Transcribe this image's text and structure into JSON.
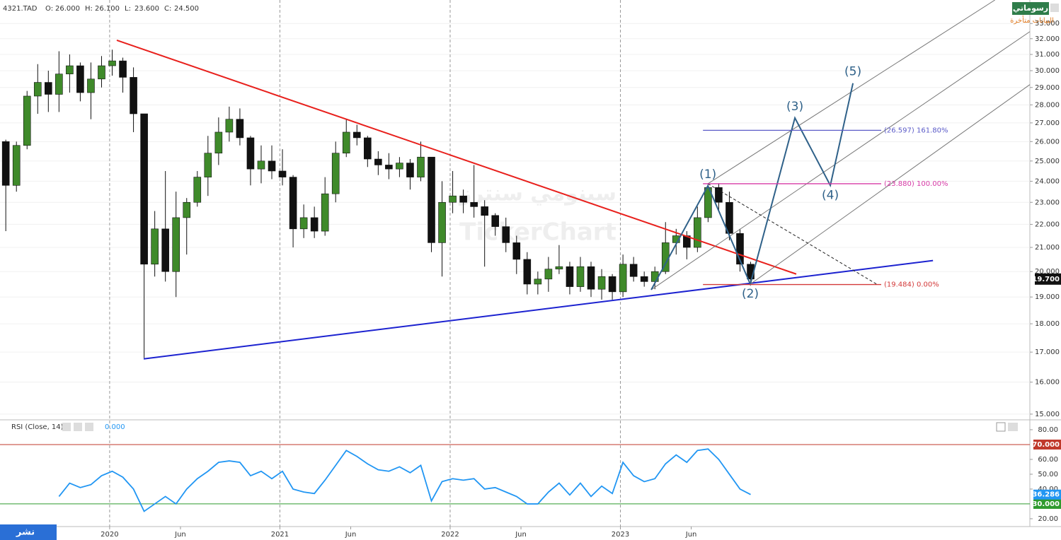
{
  "legend": {
    "symbol": "4321.TAD",
    "ohlc_labels": [
      "O:",
      "H:",
      "L:",
      "C:"
    ],
    "ohlc_values": [
      {
        "value": 26,
        "label": "26.000"
      },
      {
        "value": 26.1,
        "label": "26.100"
      },
      {
        "value": 23.6,
        "label": "23.600"
      },
      {
        "value": 24.5,
        "label": "24.500"
      }
    ]
  },
  "brand": {
    "logo": "رسوماتي",
    "delay_note": "البيانات متأخرة"
  },
  "publish_button": "نشر",
  "chart_data": [
    {
      "type": "candlestick",
      "log_scale": true,
      "grid": true,
      "up_color": "#3f8a2a",
      "down_color": "#111111",
      "watermark": [
        "سينومي سنترز",
        "TickerChart"
      ],
      "x": [
        2019.39,
        2019.4525,
        2019.515,
        2019.5775,
        2019.64,
        2019.7025,
        2019.765,
        2019.8275,
        2019.89,
        2019.9525,
        2020.015,
        2020.0775,
        2020.14,
        2020.2025,
        2020.265,
        2020.3275,
        2020.39,
        2020.4525,
        2020.515,
        2020.5775,
        2020.64,
        2020.7025,
        2020.765,
        2020.8275,
        2020.89,
        2020.9525,
        2021.015,
        2021.0775,
        2021.14,
        2021.2025,
        2021.265,
        2021.3275,
        2021.39,
        2021.4525,
        2021.515,
        2021.5775,
        2021.64,
        2021.7025,
        2021.765,
        2021.8275,
        2021.89,
        2021.9525,
        2022.015,
        2022.0775,
        2022.14,
        2022.2025,
        2022.265,
        2022.3275,
        2022.39,
        2022.4525,
        2022.515,
        2022.5775,
        2022.64,
        2022.7025,
        2022.765,
        2022.8275,
        2022.89,
        2022.9525,
        2023.015,
        2023.0775,
        2023.14,
        2023.2025,
        2023.265,
        2023.3275,
        2023.39,
        2023.4525,
        2023.515,
        2023.5775,
        2023.64,
        2023.7025,
        2023.765
      ],
      "open": [
        26,
        23.8,
        25.8,
        28.5,
        29.3,
        28.6,
        29.8,
        30.3,
        28.7,
        29.5,
        30.3,
        30.6,
        29.6,
        27.5,
        20.3,
        21.8,
        20,
        22.3,
        23,
        24.2,
        25.4,
        26.5,
        27.2,
        26.2,
        24.6,
        25,
        24.5,
        24.2,
        21.8,
        22.3,
        21.7,
        23.4,
        25.4,
        26.5,
        26.2,
        25.1,
        24.8,
        24.6,
        24.9,
        24.2,
        25.2,
        21.2,
        23,
        23.3,
        23,
        22.8,
        22.4,
        21.9,
        21.2,
        20.5,
        19.5,
        19.7,
        20.1,
        20.2,
        19.4,
        20.2,
        19.3,
        19.8,
        19.2,
        20.3,
        19.8,
        19.6,
        20,
        21.2,
        21.5,
        21,
        22.3,
        23.7,
        23,
        21.6,
        20.3
      ],
      "high": [
        26.1,
        26,
        28.8,
        30.4,
        30,
        31.2,
        31,
        30.5,
        30.5,
        30.9,
        31.3,
        30.8,
        30.2,
        27.5,
        22.6,
        24.5,
        23.5,
        23.2,
        24.5,
        26.3,
        27.3,
        27.9,
        27.8,
        26.3,
        25.8,
        25.8,
        25.6,
        24.3,
        22.9,
        22.8,
        24.2,
        26,
        27.2,
        26.9,
        26.3,
        25.5,
        25.4,
        25.2,
        25.1,
        26,
        25.2,
        24,
        24.5,
        23.6,
        24.8,
        23.1,
        22.5,
        22.3,
        21.5,
        20.8,
        20,
        20.6,
        21.1,
        20.4,
        20.6,
        20.4,
        20.1,
        19.9,
        20.7,
        20.6,
        20,
        20.2,
        22.1,
        21.8,
        21.7,
        22.8,
        23.9,
        23.9,
        23.5,
        21.8,
        20.4
      ],
      "low": [
        21.7,
        23.5,
        25.6,
        27.5,
        27.6,
        27.6,
        28.7,
        28.2,
        27.2,
        29,
        29.7,
        28.7,
        26.5,
        16.8,
        19.8,
        19.6,
        19,
        20.7,
        22.8,
        23.3,
        24.8,
        26,
        25.8,
        23.8,
        23.9,
        24.1,
        23.8,
        21,
        21.4,
        21.4,
        21.5,
        23,
        25.2,
        25.8,
        24.7,
        24.3,
        24.1,
        24.2,
        23.6,
        24,
        20.8,
        19.8,
        22.5,
        22.5,
        22.3,
        20.2,
        21.5,
        20.8,
        19.9,
        19.1,
        19.1,
        19.2,
        19.9,
        19.1,
        19.2,
        19,
        18.9,
        18.9,
        19,
        19.6,
        19.4,
        19.3,
        19.9,
        20.7,
        20.5,
        20.8,
        22.1,
        22.6,
        21.3,
        20,
        19.5
      ],
      "close": [
        23.8,
        25.8,
        28.5,
        29.3,
        28.6,
        29.8,
        30.3,
        28.7,
        29.5,
        30.3,
        30.6,
        29.6,
        27.5,
        20.3,
        21.8,
        20,
        22.3,
        23,
        24.2,
        25.4,
        26.5,
        27.2,
        26.2,
        24.6,
        25,
        24.5,
        24.2,
        21.8,
        22.3,
        21.7,
        23.4,
        25.4,
        26.5,
        26.2,
        25.1,
        24.8,
        24.6,
        24.9,
        24.2,
        25.2,
        21.2,
        23,
        23.3,
        23,
        22.8,
        22.4,
        21.9,
        21.2,
        20.5,
        19.5,
        19.7,
        20.1,
        20.2,
        19.4,
        20.2,
        19.3,
        19.8,
        19.2,
        20.3,
        19.8,
        19.6,
        20,
        21.2,
        21.5,
        21,
        22.3,
        23.7,
        23,
        21.6,
        20.3,
        19.7
      ],
      "xlim": [
        2019.356,
        2025.405
      ],
      "xticks": [
        {
          "value": 2020,
          "label": "2020"
        },
        {
          "value": 2020.416,
          "label": "Jun"
        },
        {
          "value": 2021,
          "label": "2021"
        },
        {
          "value": 2021.416,
          "label": "Jun"
        },
        {
          "value": 2022,
          "label": "2022"
        },
        {
          "value": 2022.416,
          "label": "Jun"
        },
        {
          "value": 2023,
          "label": "2023"
        },
        {
          "value": 2023.416,
          "label": "Jun"
        }
      ],
      "ylim": [
        14.87,
        34.6
      ],
      "yticks": [
        {
          "value": 15,
          "label": "15.000"
        },
        {
          "value": 16,
          "label": "16.000"
        },
        {
          "value": 17,
          "label": "17.000"
        },
        {
          "value": 18,
          "label": "18.000"
        },
        {
          "value": 19,
          "label": "19.000"
        },
        {
          "value": 20,
          "label": "20.000"
        },
        {
          "value": 21,
          "label": "21.000"
        },
        {
          "value": 22,
          "label": "22.000"
        },
        {
          "value": 23,
          "label": "23.000"
        },
        {
          "value": 24,
          "label": "24.000"
        },
        {
          "value": 25,
          "label": "25.000"
        },
        {
          "value": 26,
          "label": "26.000"
        },
        {
          "value": 27,
          "label": "27.000"
        },
        {
          "value": 28,
          "label": "28.000"
        },
        {
          "value": 29,
          "label": "29.000"
        },
        {
          "value": 30,
          "label": "30.000"
        },
        {
          "value": 31,
          "label": "31.000"
        },
        {
          "value": 32,
          "label": "32.000"
        },
        {
          "value": 33,
          "label": "33.000"
        }
      ],
      "current_price": {
        "value": 19.7,
        "label": "19.700"
      },
      "drawings": [
        {
          "color": "#e8201c",
          "width": 2,
          "points": [
            {
              "x": 2020.042,
              "y": 31.9
            },
            {
              "x": 2024.033,
              "y": 19.9
            }
          ]
        },
        {
          "color": "#1c22d0",
          "width": 2,
          "points": [
            {
              "x": 2020.2,
              "y": 16.77
            },
            {
              "x": 2024.836,
              "y": 20.45
            }
          ]
        },
        {
          "color": "#777777",
          "width": 1,
          "points": [
            {
              "x": 2023.514,
              "y": 23.88
            },
            {
              "x": 2025.2,
              "y": 34.6
            }
          ]
        },
        {
          "color": "#777777",
          "width": 1,
          "points": [
            {
              "x": 2023.181,
              "y": 19.28
            },
            {
              "x": 2025.405,
              "y": 32.46
            }
          ]
        },
        {
          "color": "#777777",
          "width": 1,
          "points": [
            {
              "x": 2023.763,
              "y": 19.5
            },
            {
              "x": 2025.405,
              "y": 29.17
            }
          ]
        },
        {
          "color": "#222222",
          "width": 1,
          "dash": "4 3",
          "points": [
            {
              "x": 2023.514,
              "y": 23.88
            },
            {
              "x": 2024.51,
              "y": 19.48
            }
          ]
        },
        {
          "color": "#2f6189",
          "width": 2,
          "points": [
            {
              "x": 2023.181,
              "y": 19.28
            },
            {
              "x": 2023.514,
              "y": 23.78
            },
            {
              "x": 2023.763,
              "y": 19.5
            },
            {
              "x": 2024.025,
              "y": 27.27
            },
            {
              "x": 2024.233,
              "y": 23.8
            },
            {
              "x": 2024.366,
              "y": 29.25
            }
          ],
          "labels": [
            null,
            "(1)",
            "(2)",
            "(3)",
            "(4)",
            "(5)"
          ]
        }
      ],
      "fib_x": [
        2023.485,
        2024.532
      ],
      "fib_levels": [
        {
          "value": 26.597,
          "label": "(26.597) 161.80%",
          "color": "#5b5bc8"
        },
        {
          "value": 23.88,
          "label": "(23.880) 100.00%",
          "color": "#d63aa6"
        },
        {
          "value": 19.484,
          "label": "(19.484) 0.00%",
          "color": "#d33a3a"
        }
      ]
    },
    {
      "type": "line",
      "title": "RSI (Close, 14)",
      "setting_value": "0.000",
      "color": "#2196f3",
      "x": [
        2019.39,
        2019.4525,
        2019.515,
        2019.5775,
        2019.64,
        2019.7025,
        2019.765,
        2019.8275,
        2019.89,
        2019.9525,
        2020.015,
        2020.0775,
        2020.14,
        2020.2025,
        2020.265,
        2020.3275,
        2020.39,
        2020.4525,
        2020.515,
        2020.5775,
        2020.64,
        2020.7025,
        2020.765,
        2020.8275,
        2020.89,
        2020.9525,
        2021.015,
        2021.0775,
        2021.14,
        2021.2025,
        2021.265,
        2021.3275,
        2021.39,
        2021.4525,
        2021.515,
        2021.5775,
        2021.64,
        2021.7025,
        2021.765,
        2021.8275,
        2021.89,
        2021.9525,
        2022.015,
        2022.0775,
        2022.14,
        2022.2025,
        2022.265,
        2022.3275,
        2022.39,
        2022.4525,
        2022.515,
        2022.5775,
        2022.64,
        2022.7025,
        2022.765,
        2022.8275,
        2022.89,
        2022.9525,
        2023.015,
        2023.0775,
        2023.14,
        2023.2025,
        2023.265,
        2023.3275,
        2023.39,
        2023.4525,
        2023.515,
        2023.5775,
        2023.64,
        2023.7025,
        2023.765
      ],
      "values": [
        null,
        null,
        null,
        null,
        null,
        35,
        44,
        41,
        43,
        49,
        52,
        48,
        40,
        25,
        30,
        35,
        30,
        40,
        47,
        52,
        58,
        59,
        58,
        49,
        52,
        47,
        52,
        40,
        38,
        37,
        46,
        56,
        66,
        62,
        57,
        53,
        52,
        55,
        51,
        56,
        32,
        45,
        47,
        46,
        47,
        40,
        41,
        38,
        35,
        30,
        30,
        38,
        44,
        36,
        44,
        35,
        42,
        37,
        58,
        49,
        45,
        47,
        57,
        63,
        58,
        66,
        67,
        60,
        50,
        40,
        36.286
      ],
      "xlim": [
        2019.356,
        2025.405
      ],
      "ylim": [
        15.2,
        85.7
      ],
      "yticks": [
        {
          "value": 20,
          "label": "20.00"
        },
        {
          "value": 40,
          "label": "40.00"
        },
        {
          "value": 50,
          "label": "50.00"
        },
        {
          "value": 60,
          "label": "60.00"
        },
        {
          "value": 80,
          "label": "80.00"
        }
      ],
      "levels": [
        {
          "value": 70,
          "label": "70.000",
          "color": "#c0392b"
        },
        {
          "value": 30,
          "label": "30.000",
          "color": "#2e9b2e"
        }
      ],
      "current_value": {
        "value": 36.286,
        "label": "36.286"
      }
    }
  ]
}
